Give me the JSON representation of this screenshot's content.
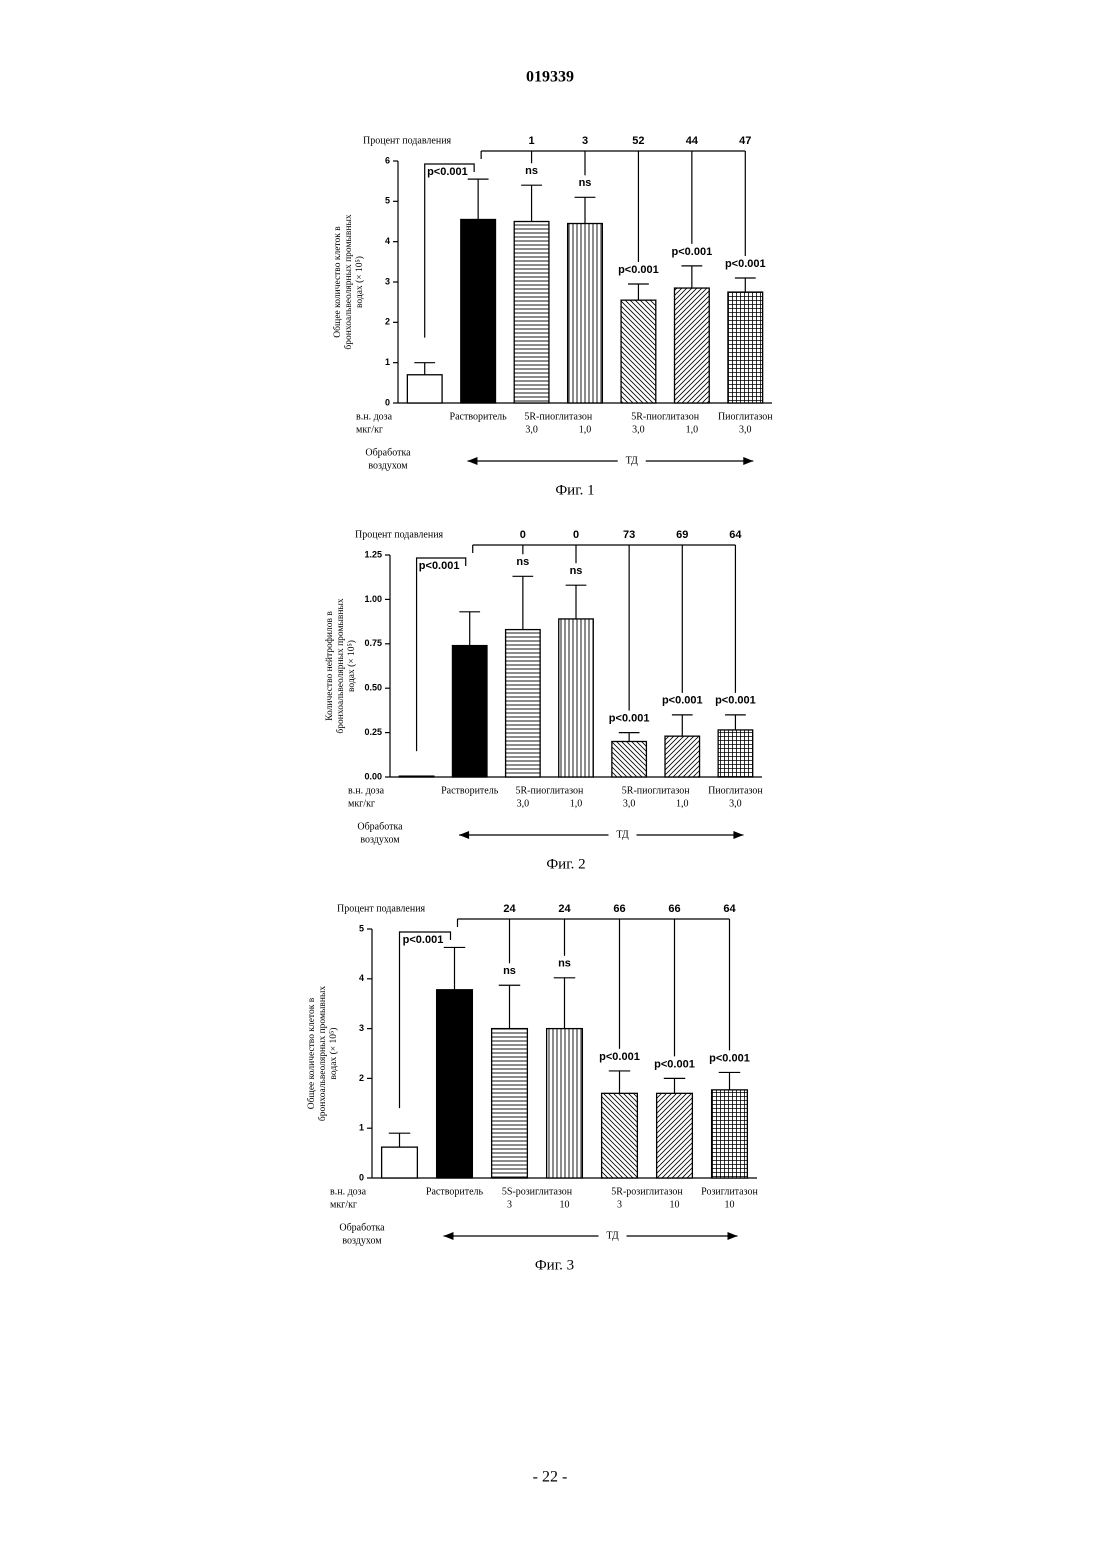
{
  "header": "019339",
  "footer": "- 22 -",
  "chart_data": [
    {
      "type": "bar",
      "caption": "Фиг. 1",
      "inhibition_title": "Процент подавления",
      "ylabel": [
        "Общее количество клеток в",
        "бронхоальвеолярных промывных",
        "водах (× 10⁵)"
      ],
      "categories": [
        null,
        "Растворитель",
        "5R-пиоглитазон",
        null,
        "5R-пиоглитазон",
        null,
        "Пиоглитазон"
      ],
      "doses": [
        null,
        null,
        "3,0",
        "1,0",
        "3,0",
        "1,0",
        "3,0"
      ],
      "values": [
        0.7,
        4.55,
        4.5,
        4.45,
        2.55,
        2.85,
        2.75
      ],
      "errors": [
        0.3,
        1.0,
        0.9,
        0.65,
        0.4,
        0.55,
        0.35
      ],
      "inhibition": [
        null,
        null,
        1,
        3,
        52,
        44,
        47
      ],
      "significance": [
        null,
        "p<0.001",
        "ns",
        "ns",
        "p<0.001",
        "p<0.001",
        "p<0.001"
      ],
      "patterns": [
        "none",
        "solid",
        "horizontal",
        "vertical",
        "diagonal-down",
        "diagonal-up",
        "grid"
      ],
      "ylim": [
        0,
        6
      ],
      "yticks": [
        0,
        1,
        2,
        3,
        4,
        5,
        6
      ],
      "dose_label": [
        "в.н. доза",
        "мкг/кг"
      ],
      "air_label": [
        "Обработка",
        "воздухом"
      ],
      "td_label": "ТД"
    },
    {
      "type": "bar",
      "caption": "Фиг. 2",
      "inhibition_title": "Процент подавления",
      "ylabel": [
        "Количество нейтрофилов в",
        "бронхоальвеолярных промывных",
        "водах (× 10⁵)"
      ],
      "categories": [
        null,
        "Растворитель",
        "5R-пиоглитазон",
        null,
        "5R-пиоглитазон",
        null,
        "Пиоглитазон"
      ],
      "doses": [
        null,
        null,
        "3,0",
        "1,0",
        "3,0",
        "1,0",
        "3,0"
      ],
      "values": [
        0.005,
        0.74,
        0.83,
        0.89,
        0.2,
        0.23,
        0.265
      ],
      "errors": [
        0,
        0.19,
        0.3,
        0.19,
        0.05,
        0.12,
        0.085
      ],
      "inhibition": [
        null,
        null,
        0,
        0,
        73,
        69,
        64
      ],
      "significance": [
        null,
        "p<0.001",
        "ns",
        "ns",
        "p<0.001",
        "p<0.001",
        "p<0.001"
      ],
      "patterns": [
        "none",
        "solid",
        "horizontal",
        "vertical",
        "diagonal-down",
        "diagonal-up",
        "grid"
      ],
      "ylim": [
        0,
        1.25
      ],
      "yticks": [
        {
          "value": 0,
          "label": "0.00"
        },
        0.25,
        {
          "value": 0.5,
          "label": "0.50"
        },
        0.75,
        {
          "value": 1,
          "label": "1.00"
        },
        1.25
      ],
      "dose_label": [
        "в.н. доза",
        "мкг/кг"
      ],
      "air_label": [
        "Обработка",
        "воздухом"
      ],
      "td_label": "ТД"
    },
    {
      "type": "bar",
      "caption": "Фиг. 3",
      "inhibition_title": "Процент подавления",
      "ylabel": [
        "Общее количество клеток в",
        "бронхоальвеолярных промывных",
        "водах (× 10⁵)"
      ],
      "categories": [
        null,
        "Растворитель",
        "5S-розиглитазон",
        null,
        "5R-розиглитазон",
        null,
        "Розиглитазон"
      ],
      "doses": [
        null,
        null,
        "3",
        "10",
        "3",
        "10",
        "10"
      ],
      "values": [
        0.62,
        3.78,
        3.0,
        3.0,
        1.7,
        1.7,
        1.77
      ],
      "errors": [
        0.28,
        0.85,
        0.87,
        1.02,
        0.45,
        0.3,
        0.35
      ],
      "inhibition": [
        null,
        null,
        24,
        24,
        66,
        66,
        64
      ],
      "significance": [
        null,
        "p<0.001",
        "ns",
        "ns",
        "p<0.001",
        "p<0.001",
        "p<0.001"
      ],
      "patterns": [
        "none",
        "solid",
        "horizontal",
        "vertical",
        "diagonal-down",
        "diagonal-up",
        "grid"
      ],
      "ylim": [
        0,
        5
      ],
      "yticks": [
        0,
        1,
        2,
        3,
        4,
        5
      ],
      "dose_label": [
        "в.н. доза",
        "мкг/кг"
      ],
      "air_label": [
        "Обработка",
        "воздухом"
      ],
      "td_label": "ТД"
    }
  ]
}
